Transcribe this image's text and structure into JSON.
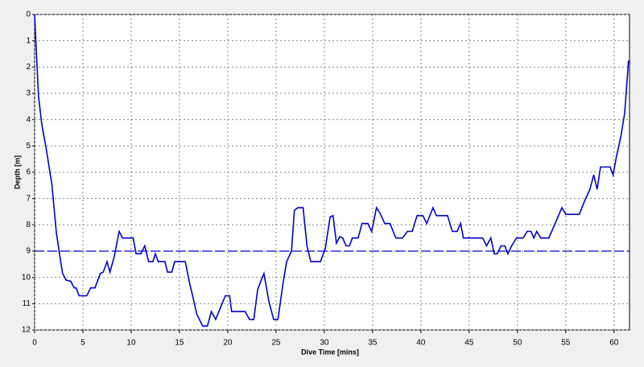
{
  "chart_data": {
    "type": "line",
    "x_label": "Dive Time [mins]",
    "y_label": "Depth [m]",
    "x": [
      0,
      0.17,
      0.4,
      0.75,
      1.2,
      1.8,
      2.25,
      2.7,
      2.9,
      3.25,
      3.75,
      4.1,
      4.3,
      4.6,
      5.4,
      5.8,
      6.25,
      6.8,
      7.1,
      7.5,
      7.8,
      8.25,
      8.75,
      9.1,
      10.2,
      10.5,
      11,
      11.4,
      11.8,
      12.25,
      12.5,
      12.8,
      13.5,
      13.75,
      14.2,
      14.5,
      15.6,
      16.1,
      16.4,
      16.8,
      17.4,
      17.9,
      18.3,
      18.75,
      19.75,
      20.2,
      20.4,
      21.8,
      22.25,
      22.7,
      23.1,
      23.75,
      24.25,
      24.75,
      25.2,
      25.75,
      26.1,
      26.6,
      26.9,
      27.25,
      27.8,
      28.2,
      28.6,
      29.6,
      30.1,
      30.6,
      30.9,
      31.25,
      31.6,
      31.9,
      32.25,
      32.6,
      32.9,
      33.5,
      33.9,
      34.5,
      34.9,
      35.4,
      35.75,
      36.25,
      36.8,
      37.4,
      38.1,
      38.6,
      39.1,
      39.6,
      40.2,
      40.6,
      41.25,
      41.6,
      42.75,
      43.25,
      43.75,
      44.1,
      44.4,
      46.4,
      46.8,
      47.25,
      47.6,
      47.9,
      48.3,
      48.7,
      49,
      49.4,
      49.9,
      50.6,
      51,
      51.4,
      51.7,
      52,
      52.4,
      53.25,
      53.9,
      54.6,
      55,
      56.4,
      57,
      57.5,
      57.9,
      58.25,
      58.6,
      59.6,
      59.9,
      60.25,
      60.7,
      61.1,
      61.5
    ],
    "values": [
      0,
      1.3,
      3.1,
      4.2,
      5.1,
      6.5,
      8.3,
      9.4,
      9.85,
      10.1,
      10.15,
      10.4,
      10.4,
      10.7,
      10.7,
      10.4,
      10.4,
      9.85,
      9.8,
      9.4,
      9.8,
      9.2,
      8.25,
      8.5,
      8.5,
      9.1,
      9.1,
      8.8,
      9.4,
      9.4,
      9.1,
      9.4,
      9.4,
      9.8,
      9.8,
      9.4,
      9.4,
      10.3,
      10.75,
      11.4,
      11.85,
      11.85,
      11.3,
      11.6,
      10.7,
      10.7,
      11.3,
      11.3,
      11.6,
      11.6,
      10.45,
      9.85,
      10.9,
      11.6,
      11.6,
      10.15,
      9.4,
      9.0,
      7.45,
      7.35,
      7.35,
      8.8,
      9.4,
      9.4,
      8.9,
      7.7,
      7.65,
      8.7,
      8.45,
      8.5,
      8.8,
      8.8,
      8.5,
      8.5,
      7.95,
      7.95,
      8.25,
      7.35,
      7.55,
      7.95,
      7.95,
      8.5,
      8.5,
      8.25,
      8.25,
      7.65,
      7.65,
      7.95,
      7.35,
      7.65,
      7.65,
      8.25,
      8.25,
      7.95,
      8.5,
      8.5,
      8.8,
      8.5,
      9.1,
      9.1,
      8.8,
      8.8,
      9.1,
      8.8,
      8.5,
      8.5,
      8.25,
      8.25,
      8.5,
      8.25,
      8.5,
      8.5,
      7.95,
      7.35,
      7.6,
      7.6,
      7.05,
      6.65,
      6.1,
      6.65,
      5.8,
      5.8,
      6.1,
      5.4,
      4.65,
      3.75,
      1.75
    ],
    "color": "#0000cc",
    "reference_line": 9,
    "xlim": [
      0,
      61.6
    ],
    "xticks": [
      0,
      5,
      10,
      15,
      20,
      25,
      30,
      35,
      40,
      45,
      50,
      55,
      60
    ],
    "ylim": [
      0,
      12
    ],
    "yticks": [
      0,
      1,
      2,
      3,
      4,
      5,
      6,
      7,
      8,
      9,
      10,
      11,
      12
    ],
    "y_inverted": true,
    "grid": true
  }
}
